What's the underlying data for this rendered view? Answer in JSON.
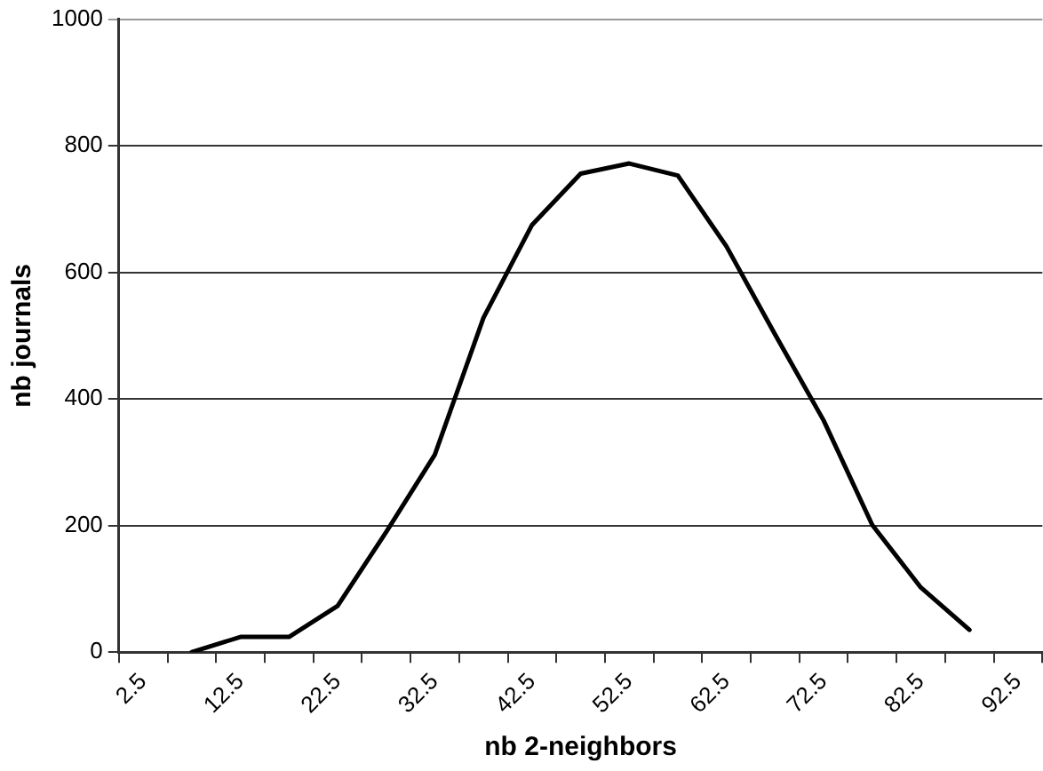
{
  "chart_data": {
    "type": "line",
    "xlabel": "nb 2-neighbors",
    "ylabel": "nb journals",
    "categories": [
      "2.5",
      null,
      "12.5",
      null,
      "22.5",
      null,
      "32.5",
      null,
      "42.5",
      null,
      "52.5",
      null,
      "62.5",
      null,
      "72.5",
      null,
      "82.5",
      null,
      "92.5"
    ],
    "series": [
      {
        "color": "#000000",
        "values": [
          null,
          0,
          24,
          24,
          73,
          190,
          312,
          528,
          675,
          756,
          772,
          753,
          641,
          502,
          366,
          201,
          102,
          35,
          null
        ]
      }
    ],
    "ylim": [
      0,
      1000
    ],
    "yticks": [
      0,
      200,
      400,
      600,
      800,
      1000
    ],
    "grid": "y",
    "legend": false,
    "marker": "none",
    "line_style": "solid"
  }
}
